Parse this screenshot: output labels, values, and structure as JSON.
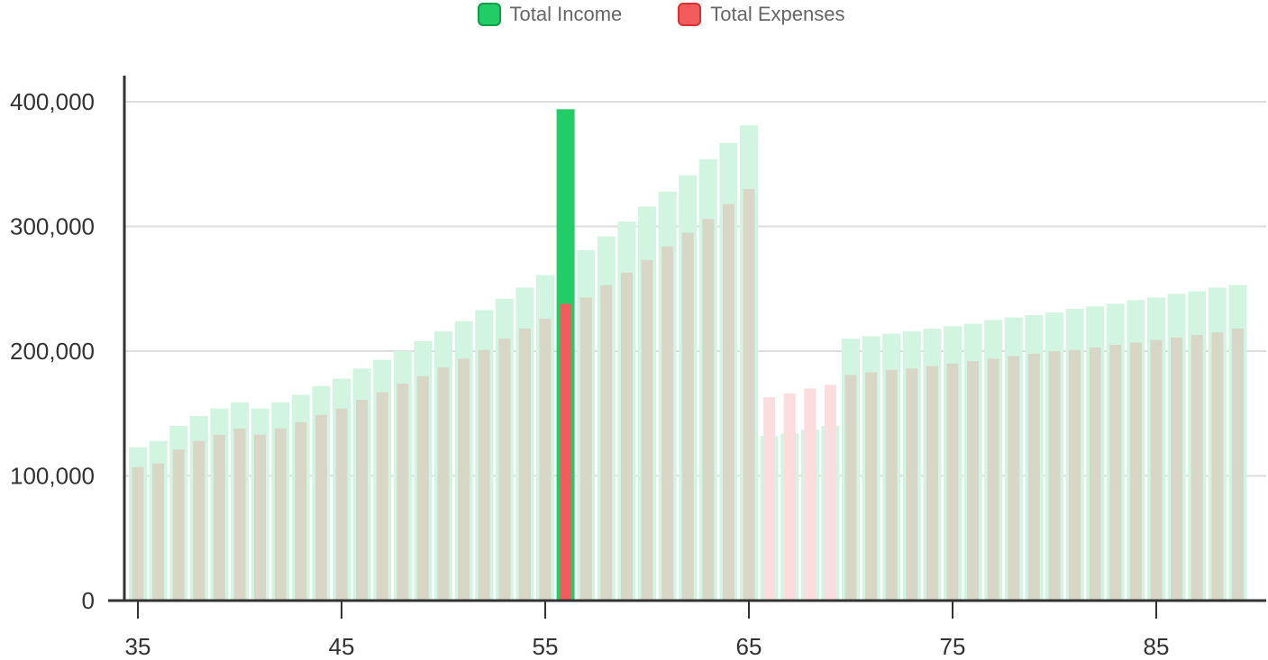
{
  "legend": {
    "income_label": "Total Income",
    "expenses_label": "Total Expenses"
  },
  "colors": {
    "income": "#22cc66",
    "income_border": "#0e9c45",
    "income_faded": "#d2f5e1",
    "expenses": "#f25c5c",
    "expenses_border": "#d93030",
    "expenses_faded": "#d8d6c6",
    "expenses_faded_over": "#fcdcdc",
    "gridline": "#dddddd",
    "axis": "#333333"
  },
  "chart_data": {
    "type": "bar",
    "title": "",
    "xlabel": "",
    "ylabel": "",
    "ylim": [
      0,
      400000
    ],
    "xlim": [
      35,
      89
    ],
    "highlighted_x": 56,
    "y_ticks": [
      {
        "value": 0,
        "label": "0"
      },
      {
        "value": 100000,
        "label": "100,000"
      },
      {
        "value": 200000,
        "label": "200,000"
      },
      {
        "value": 300000,
        "label": "300,000"
      },
      {
        "value": 400000,
        "label": "400,000"
      }
    ],
    "x_ticks": [
      {
        "value": 35,
        "label": "35"
      },
      {
        "value": 45,
        "label": "45"
      },
      {
        "value": 55,
        "label": "55"
      },
      {
        "value": 65,
        "label": "65"
      },
      {
        "value": 75,
        "label": "75"
      },
      {
        "value": 85,
        "label": "85"
      }
    ],
    "x": [
      35,
      36,
      37,
      38,
      39,
      40,
      41,
      42,
      43,
      44,
      45,
      46,
      47,
      48,
      49,
      50,
      51,
      52,
      53,
      54,
      55,
      56,
      57,
      58,
      59,
      60,
      61,
      62,
      63,
      64,
      65,
      66,
      67,
      68,
      69,
      70,
      71,
      72,
      73,
      74,
      75,
      76,
      77,
      78,
      79,
      80,
      81,
      82,
      83,
      84,
      85,
      86,
      87,
      88,
      89
    ],
    "series": [
      {
        "name": "Total Income",
        "values": [
          123000,
          128000,
          140000,
          148000,
          154000,
          159000,
          154000,
          159000,
          165000,
          172000,
          178000,
          186000,
          193000,
          200000,
          208000,
          216000,
          224000,
          233000,
          242000,
          251000,
          261000,
          394000,
          281000,
          292000,
          304000,
          316000,
          328000,
          341000,
          354000,
          367000,
          381000,
          132000,
          134000,
          137000,
          140000,
          210000,
          212000,
          214000,
          216000,
          218000,
          220000,
          222000,
          225000,
          227000,
          229000,
          231000,
          234000,
          236000,
          238000,
          241000,
          243000,
          246000,
          248000,
          251000,
          253000
        ]
      },
      {
        "name": "Total Expenses",
        "values": [
          107000,
          110000,
          121000,
          128000,
          133000,
          138000,
          133000,
          138000,
          143000,
          149000,
          154000,
          161000,
          167000,
          174000,
          180000,
          187000,
          194000,
          201000,
          210000,
          218000,
          226000,
          238000,
          243000,
          253000,
          263000,
          273000,
          284000,
          295000,
          306000,
          318000,
          330000,
          163000,
          166000,
          170000,
          173000,
          181000,
          183000,
          185000,
          186000,
          188000,
          190000,
          192000,
          194000,
          196000,
          198000,
          200000,
          201000,
          203000,
          205000,
          207000,
          209000,
          211000,
          213000,
          215000,
          218000
        ]
      }
    ]
  }
}
